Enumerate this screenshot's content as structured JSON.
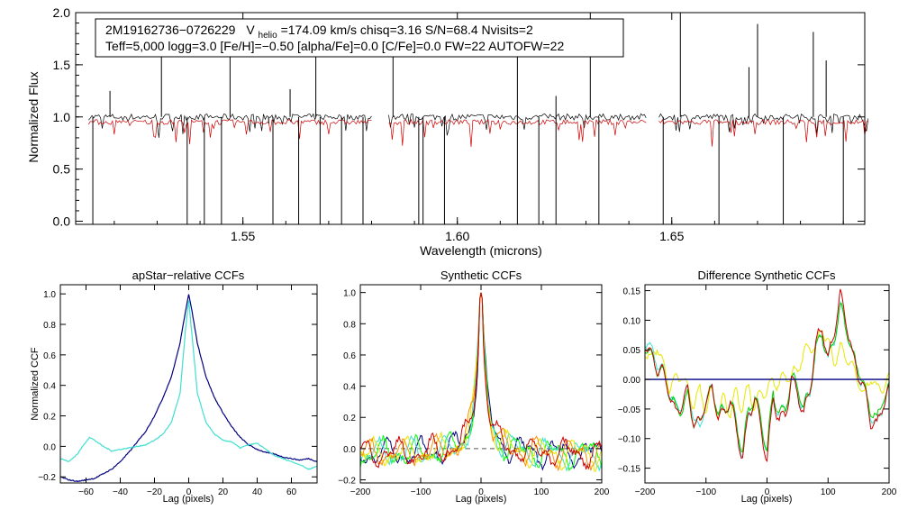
{
  "chart_data": [
    {
      "type": "line",
      "id": "spectrum",
      "xlabel": "Wavelength (microns)",
      "ylabel": "Normalized Flux",
      "xlim": [
        1.511,
        1.695
      ],
      "ylim": [
        -0.03,
        2.0
      ],
      "xticks": [
        "1.55",
        "1.60",
        "1.65"
      ],
      "yticks": [
        "0.0",
        "0.5",
        "1.0",
        "1.5",
        "2.0"
      ],
      "info": {
        "star": "2M19162736−0726229",
        "v_prefix": "V",
        "v_sub": "helio",
        "v_rest": "=174.09 km/s  chisq=3.16  S/N=68.4  Nvisits=2",
        "line2": "Teff=5,000 logg=3.0 [Fe/H]=−0.50 [alpha/Fe]=0.0 [C/Fe]=0.0 FW=22 AUTOFW=22"
      },
      "chips": [
        [
          1.514,
          1.58
        ],
        [
          1.584,
          1.644
        ],
        [
          1.647,
          1.696
        ]
      ],
      "series": [
        {
          "name": "observed",
          "color": "#000000",
          "level": 1.0,
          "noise": 0.03
        },
        {
          "name": "model",
          "color": "#cc0000",
          "level": 0.95,
          "noise": 0.025
        }
      ],
      "emission_spikes": [
        1.519,
        1.531,
        1.547,
        1.556,
        1.561,
        1.567,
        1.585,
        1.599,
        1.614,
        1.623,
        1.631,
        1.652,
        1.668,
        1.67,
        1.683,
        1.686
      ],
      "absorption_spikes": [
        1.515,
        1.537,
        1.541,
        1.545,
        1.557,
        1.563,
        1.568,
        1.573,
        1.578,
        1.591,
        1.592,
        1.597,
        1.614,
        1.619,
        1.623,
        1.633,
        1.648,
        1.661,
        1.676,
        1.69
      ]
    },
    {
      "type": "line",
      "id": "apstar",
      "title": "apStar−relative CCFs",
      "xlabel": "Lag (pixels)",
      "ylabel": "Normalized CCF",
      "xlim": [
        -75,
        75
      ],
      "ylim": [
        -0.24,
        1.06
      ],
      "xticks": [
        -60,
        -40,
        -20,
        0,
        20,
        40,
        60
      ],
      "yticks": [
        1.0,
        0.8,
        0.6,
        0.4,
        0.2,
        0.0,
        -0.2
      ],
      "ytick_labels": [
        "1.0",
        "0.8",
        "0.6",
        "0.4",
        "0.2",
        "0.0",
        "−0.2"
      ],
      "xtick_labels": [
        "−60",
        "−40",
        "−20",
        "0",
        "20",
        "40",
        "60"
      ],
      "series": [
        {
          "name": "ccf-1",
          "color": "#000080",
          "x": [
            -75,
            -70,
            -65,
            -60,
            -55,
            -50,
            -45,
            -40,
            -35,
            -30,
            -25,
            -20,
            -15,
            -10,
            -5,
            -2,
            0,
            2,
            5,
            10,
            15,
            20,
            25,
            30,
            35,
            40,
            45,
            50,
            55,
            60,
            65,
            70,
            75
          ],
          "y": [
            -0.2,
            -0.22,
            -0.23,
            -0.22,
            -0.21,
            -0.18,
            -0.15,
            -0.1,
            -0.04,
            0.03,
            0.1,
            0.2,
            0.32,
            0.46,
            0.68,
            0.88,
            1.0,
            0.88,
            0.68,
            0.46,
            0.32,
            0.22,
            0.13,
            0.06,
            0.01,
            -0.02,
            -0.04,
            -0.05,
            -0.07,
            -0.08,
            -0.09,
            -0.08,
            -0.1
          ]
        },
        {
          "name": "ccf-2",
          "color": "#40e0d0",
          "x": [
            -75,
            -70,
            -65,
            -62,
            -58,
            -55,
            -50,
            -45,
            -40,
            -35,
            -30,
            -25,
            -20,
            -15,
            -10,
            -5,
            -2,
            0,
            2,
            5,
            10,
            15,
            20,
            25,
            30,
            35,
            40,
            45,
            50,
            55,
            60,
            65,
            70,
            75
          ],
          "y": [
            -0.08,
            -0.1,
            -0.05,
            0.0,
            0.06,
            0.04,
            0.0,
            -0.03,
            -0.02,
            -0.01,
            0.0,
            0.01,
            0.04,
            0.08,
            0.16,
            0.35,
            0.75,
            0.96,
            0.72,
            0.35,
            0.16,
            0.08,
            0.04,
            0.03,
            -0.01,
            0.01,
            0.02,
            -0.02,
            -0.06,
            -0.08,
            -0.1,
            -0.12,
            -0.15,
            -0.13
          ]
        }
      ]
    },
    {
      "type": "line",
      "id": "synthetic",
      "title": "Synthetic CCFs",
      "xlabel": "Lag (pixels)",
      "xlim": [
        -200,
        200
      ],
      "ylim": [
        -0.22,
        1.05
      ],
      "xticks": [
        -200,
        -100,
        0,
        100,
        200
      ],
      "xtick_labels": [
        "−200",
        "−100",
        "0",
        "100",
        "200"
      ],
      "yticks": [
        1.0,
        0.8,
        0.6,
        0.4,
        0.2,
        0.0,
        -0.2
      ],
      "ytick_labels": [
        "1.0",
        "0.8",
        "0.6",
        "0.4",
        "0.2",
        "0.0",
        "−0.2"
      ],
      "baseline": 0.0,
      "series": [
        {
          "name": "synth-1",
          "color": "#000080",
          "offset": 0
        },
        {
          "name": "synth-2",
          "color": "#00ff00",
          "offset": 1
        },
        {
          "name": "synth-3",
          "color": "#40e0d0",
          "offset": 2
        },
        {
          "name": "synth-4",
          "color": "#e6e600",
          "offset": 3
        },
        {
          "name": "synth-5",
          "color": "#ff8c00",
          "offset": 4
        },
        {
          "name": "synth-6",
          "color": "#cc0000",
          "offset": 5
        }
      ],
      "peak": 1.0
    },
    {
      "type": "line",
      "id": "difference",
      "title": "Difference Synthetic CCFs",
      "xlabel": "Lag (pixels)",
      "xlim": [
        -200,
        200
      ],
      "ylim": [
        -0.175,
        0.16
      ],
      "xticks": [
        -200,
        -100,
        0,
        100,
        200
      ],
      "xtick_labels": [
        "−200",
        "−100",
        "0",
        "100",
        "200"
      ],
      "yticks": [
        0.15,
        0.1,
        0.05,
        0.0,
        -0.05,
        -0.1,
        -0.15
      ],
      "ytick_labels": [
        "0.15",
        "0.10",
        "0.05",
        "0.00",
        "−0.05",
        "−0.10",
        "−0.15"
      ],
      "baseline": 0.0,
      "series": [
        {
          "name": "diff-yellow",
          "color": "#e6e600",
          "x": [
            -200,
            -190,
            -180,
            -170,
            -160,
            -150,
            -140,
            -130,
            -120,
            -110,
            -100,
            -90,
            -80,
            -70,
            -60,
            -50,
            -40,
            -30,
            -20,
            -10,
            0,
            10,
            20,
            30,
            40,
            50,
            60,
            70,
            80,
            90,
            100,
            110,
            120,
            130,
            140,
            150,
            160,
            170,
            180,
            190,
            200
          ],
          "y": [
            0.05,
            0.03,
            0.06,
            0.02,
            -0.01,
            0.0,
            0.01,
            -0.02,
            -0.04,
            -0.02,
            -0.05,
            -0.02,
            -0.06,
            -0.03,
            -0.06,
            -0.02,
            -0.05,
            -0.01,
            -0.05,
            -0.02,
            -0.02,
            0.0,
            -0.01,
            0.01,
            0.0,
            0.02,
            0.04,
            0.06,
            0.05,
            0.09,
            0.06,
            0.03,
            0.05,
            0.04,
            0.02,
            0.0,
            -0.03,
            0.01,
            -0.02,
            -0.01,
            0.0
          ]
        },
        {
          "name": "diff-cyan",
          "color": "#40e0d0",
          "x": [
            -200,
            -190,
            -180,
            -170,
            -160,
            -150,
            -140,
            -130,
            -120,
            -110,
            -100,
            -90,
            -80,
            -70,
            -60,
            -50,
            -40,
            -30,
            -20,
            -10,
            0,
            10,
            20,
            30,
            40,
            50,
            60,
            70,
            80,
            90,
            100,
            110,
            120,
            130,
            140,
            150,
            160,
            170,
            180,
            190,
            200
          ],
          "y": [
            0.07,
            0.05,
            0.03,
            0.01,
            -0.02,
            -0.05,
            -0.04,
            -0.02,
            -0.06,
            -0.09,
            -0.03,
            -0.02,
            -0.05,
            -0.06,
            -0.03,
            -0.08,
            -0.13,
            -0.06,
            -0.03,
            -0.07,
            -0.12,
            -0.03,
            -0.06,
            -0.05,
            0.0,
            -0.02,
            -0.05,
            -0.02,
            0.05,
            0.08,
            0.03,
            0.07,
            0.12,
            0.09,
            0.04,
            0.01,
            -0.02,
            -0.06,
            -0.08,
            -0.04,
            -0.02
          ]
        },
        {
          "name": "diff-green",
          "color": "#00cc00",
          "x": [
            -200,
            -190,
            -180,
            -170,
            -160,
            -150,
            -140,
            -130,
            -120,
            -110,
            -100,
            -90,
            -80,
            -70,
            -60,
            -50,
            -40,
            -30,
            -20,
            -10,
            0,
            10,
            20,
            30,
            40,
            50,
            60,
            70,
            80,
            90,
            100,
            110,
            120,
            130,
            140,
            150,
            160,
            170,
            180,
            190,
            200
          ],
          "y": [
            0.06,
            0.04,
            0.02,
            0.01,
            -0.02,
            -0.05,
            -0.05,
            -0.03,
            -0.07,
            -0.08,
            -0.03,
            -0.02,
            -0.05,
            -0.06,
            -0.03,
            -0.08,
            -0.12,
            -0.05,
            -0.03,
            -0.07,
            -0.12,
            -0.02,
            -0.06,
            -0.05,
            0.0,
            -0.01,
            -0.05,
            -0.02,
            0.05,
            0.08,
            0.03,
            0.07,
            0.12,
            0.09,
            0.04,
            0.02,
            -0.02,
            -0.05,
            -0.07,
            -0.03,
            -0.02
          ]
        },
        {
          "name": "diff-red",
          "color": "#cc0000",
          "x": [
            -200,
            -190,
            -180,
            -170,
            -160,
            -150,
            -140,
            -130,
            -120,
            -110,
            -100,
            -90,
            -80,
            -70,
            -60,
            -50,
            -40,
            -30,
            -20,
            -10,
            0,
            10,
            20,
            30,
            40,
            50,
            60,
            70,
            80,
            90,
            100,
            110,
            120,
            130,
            140,
            150,
            160,
            170,
            180,
            190,
            200
          ],
          "y": [
            0.06,
            0.04,
            0.02,
            0.01,
            -0.02,
            -0.06,
            -0.04,
            -0.02,
            -0.07,
            -0.08,
            -0.03,
            -0.02,
            -0.06,
            -0.06,
            -0.03,
            -0.09,
            -0.13,
            -0.06,
            -0.03,
            -0.08,
            -0.14,
            -0.03,
            -0.07,
            -0.06,
            0.0,
            -0.02,
            -0.06,
            -0.02,
            0.06,
            0.09,
            0.03,
            0.08,
            0.14,
            0.1,
            0.04,
            0.01,
            -0.02,
            -0.07,
            -0.08,
            -0.04,
            -0.02
          ]
        },
        {
          "name": "diff-navy-baseline",
          "color": "#000080",
          "x": [
            -200,
            200
          ],
          "y": [
            0.0,
            0.0
          ]
        }
      ]
    }
  ]
}
